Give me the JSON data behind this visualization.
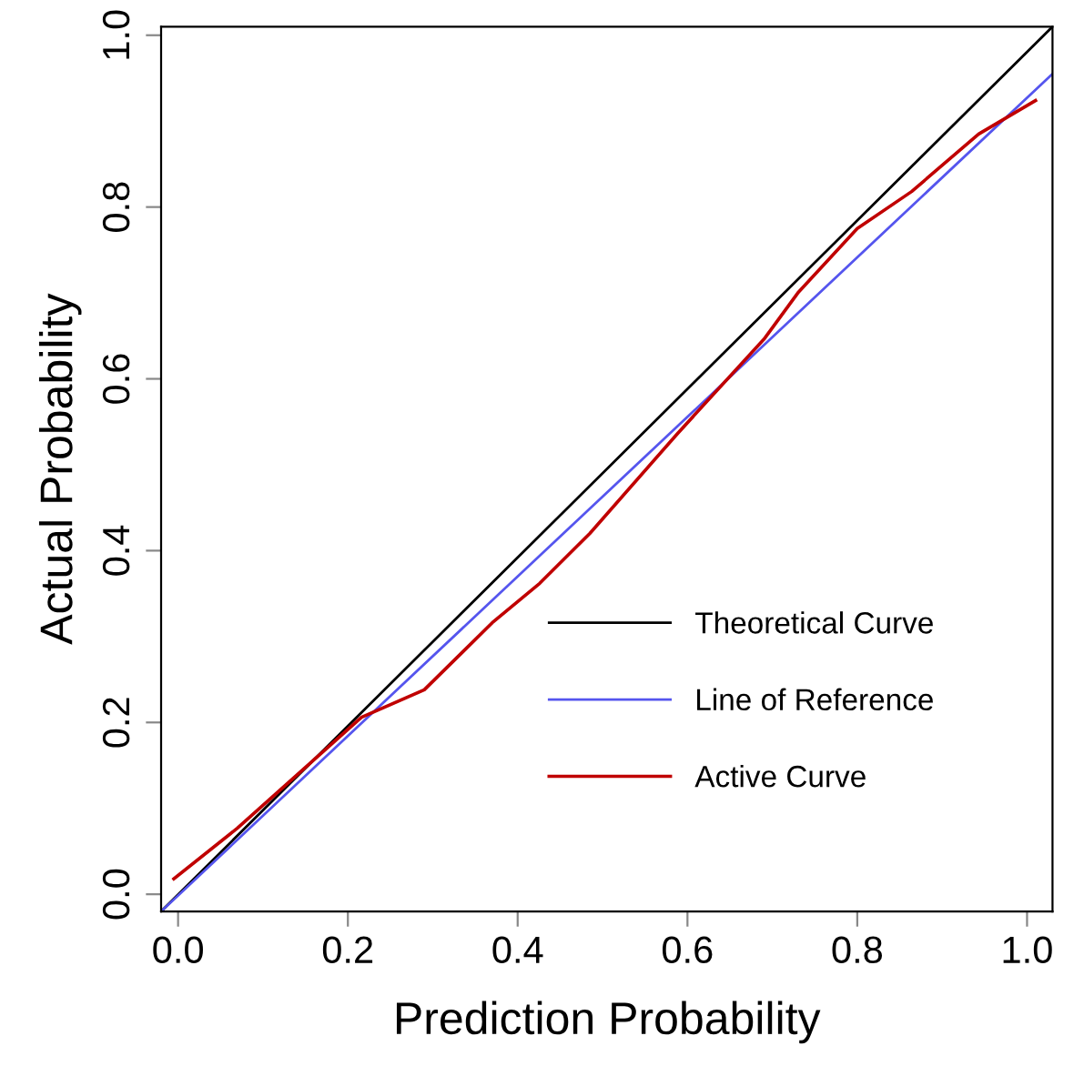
{
  "chart_data": {
    "type": "line",
    "xlabel": "Prediction Probability",
    "ylabel": "Actual Probability",
    "xlim": [
      -0.02,
      1.03
    ],
    "ylim": [
      -0.02,
      1.01
    ],
    "xticks": [
      {
        "value": 0,
        "label": "0.0"
      },
      0.2,
      0.4,
      0.6,
      0.8,
      {
        "value": 1,
        "label": "1.0"
      }
    ],
    "yticks": [
      {
        "value": 0,
        "label": "0.0"
      },
      0.2,
      0.4,
      0.6,
      0.8,
      {
        "value": 1,
        "label": "1.0"
      }
    ],
    "grid": false,
    "legend": "bottom right",
    "marker": "none",
    "line_style": "solid",
    "series": [
      {
        "name": "Theoretical Curve",
        "color": "#000000",
        "x": [
          -0.02,
          1.03
        ],
        "values": [
          -0.02,
          1.01
        ]
      },
      {
        "name": "Line of Reference",
        "color": "#5555ee",
        "x": [
          -0.02,
          1.03
        ],
        "values": [
          -0.02,
          0.955
        ]
      },
      {
        "name": "Active Curve",
        "color": "#c00000",
        "x": [
          -0.005,
          0.07,
          0.172,
          0.216,
          0.29,
          0.37,
          0.426,
          0.485,
          0.588,
          0.69,
          0.73,
          0.8,
          0.864,
          0.943,
          1.01
        ],
        "values": [
          0.018,
          0.077,
          0.167,
          0.206,
          0.238,
          0.316,
          0.362,
          0.42,
          0.536,
          0.646,
          0.7,
          0.775,
          0.818,
          0.885,
          0.924
        ]
      }
    ]
  }
}
